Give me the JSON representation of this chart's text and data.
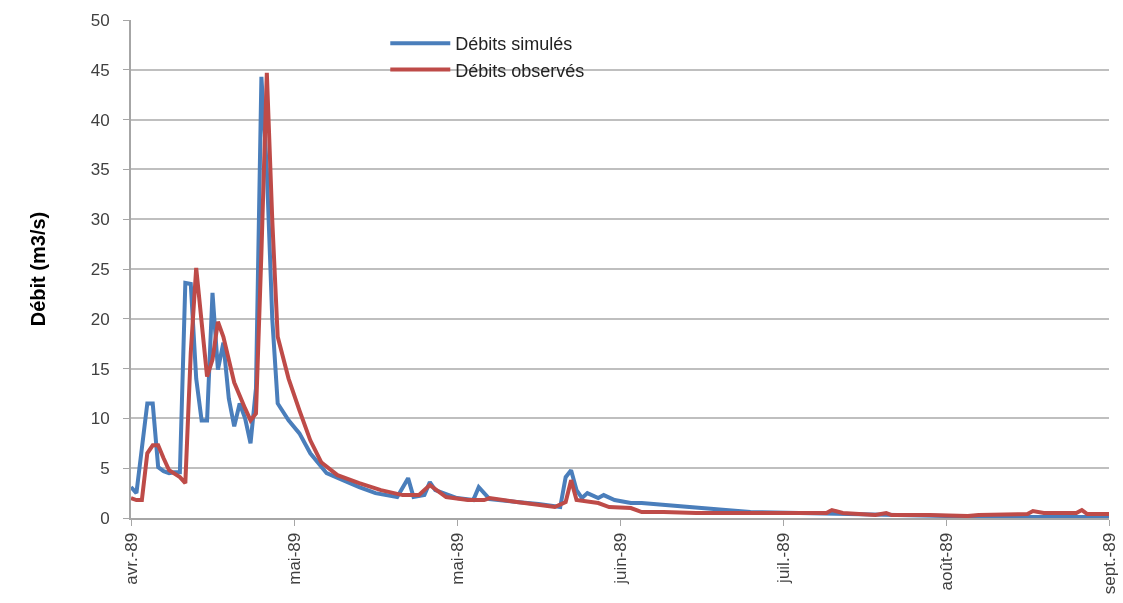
{
  "chart_data": {
    "type": "line",
    "ylabel": "Débit (m3/s)",
    "xlim": [
      "1989-04-01",
      "1989-09-28"
    ],
    "xticks": [
      {
        "value": "1989-04-01",
        "label": "avr.-89"
      },
      {
        "value": "1989-05-01",
        "label": "mai-89"
      },
      {
        "value": "1989-05-31",
        "label": "mai-89"
      },
      {
        "value": "1989-06-30",
        "label": "juin-89"
      },
      {
        "value": "1989-07-30",
        "label": "juil.-89"
      },
      {
        "value": "1989-08-29",
        "label": "août-89"
      },
      {
        "value": "1989-09-28",
        "label": "sept.-89"
      }
    ],
    "ylim": [
      0,
      50
    ],
    "yticks": [
      0,
      5,
      10,
      15,
      20,
      25,
      30,
      35,
      40,
      45,
      50
    ],
    "grid": "y",
    "legend": "top",
    "marker": "none",
    "line_style": "solid",
    "series": [
      {
        "name": "Débits simulés",
        "color": "#4a7ebb",
        "x": [
          "1989-04-01",
          "1989-04-02",
          "1989-04-03",
          "1989-04-04",
          "1989-04-05",
          "1989-04-06",
          "1989-04-07",
          "1989-04-08",
          "1989-04-09",
          "1989-04-10",
          "1989-04-11",
          "1989-04-12",
          "1989-04-13",
          "1989-04-14",
          "1989-04-15",
          "1989-04-16",
          "1989-04-17",
          "1989-04-18",
          "1989-04-19",
          "1989-04-20",
          "1989-04-21",
          "1989-04-22",
          "1989-04-23",
          "1989-04-24",
          "1989-04-25",
          "1989-04-26",
          "1989-04-27",
          "1989-04-28",
          "1989-04-30",
          "1989-05-02",
          "1989-05-04",
          "1989-05-07",
          "1989-05-10",
          "1989-05-13",
          "1989-05-16",
          "1989-05-20",
          "1989-05-22",
          "1989-05-23",
          "1989-05-25",
          "1989-05-26",
          "1989-05-27",
          "1989-05-31",
          "1989-06-03",
          "1989-06-04",
          "1989-06-06",
          "1989-06-11",
          "1989-06-15",
          "1989-06-19",
          "1989-06-20",
          "1989-06-21",
          "1989-06-22",
          "1989-06-23",
          "1989-06-24",
          "1989-06-26",
          "1989-06-27",
          "1989-06-29",
          "1989-07-02",
          "1989-07-04",
          "1989-07-15",
          "1989-07-24",
          "1989-08-02",
          "1989-08-20",
          "1989-09-07",
          "1989-09-28"
        ],
        "values": [
          3.1,
          2.5,
          7,
          11.5,
          11.5,
          5.1,
          4.7,
          4.5,
          4.6,
          4.6,
          23.6,
          23.5,
          14,
          9.8,
          9.8,
          22.6,
          14.9,
          17.6,
          12,
          9.2,
          11.5,
          10,
          7.5,
          13,
          44.3,
          35,
          20,
          11.5,
          9.8,
          8.5,
          6.5,
          4.5,
          3.8,
          3.1,
          2.5,
          2.1,
          4,
          2.1,
          2.3,
          3.6,
          2.8,
          2,
          1.8,
          3.1,
          1.9,
          1.6,
          1.4,
          1.1,
          4.1,
          4.8,
          2.8,
          2,
          2.5,
          2,
          2.3,
          1.8,
          1.5,
          1.5,
          1,
          0.6,
          0.5,
          0.3,
          0.1,
          0.1
        ]
      },
      {
        "name": "Débits observés",
        "color": "#be4b48",
        "x": [
          "1989-04-01",
          "1989-04-02",
          "1989-04-03",
          "1989-04-04",
          "1989-04-05",
          "1989-04-06",
          "1989-04-07",
          "1989-04-08",
          "1989-04-10",
          "1989-04-11",
          "1989-04-12",
          "1989-04-13",
          "1989-04-15",
          "1989-04-16",
          "1989-04-17",
          "1989-04-18",
          "1989-04-20",
          "1989-04-22",
          "1989-04-23",
          "1989-04-24",
          "1989-04-25",
          "1989-04-26",
          "1989-04-27",
          "1989-04-28",
          "1989-04-30",
          "1989-05-02",
          "1989-05-04",
          "1989-05-06",
          "1989-05-09",
          "1989-05-13",
          "1989-05-17",
          "1989-05-21",
          "1989-05-24",
          "1989-05-26",
          "1989-05-29",
          "1989-06-02",
          "1989-06-05",
          "1989-06-06",
          "1989-06-11",
          "1989-06-18",
          "1989-06-20",
          "1989-06-21",
          "1989-06-22",
          "1989-06-26",
          "1989-06-28",
          "1989-07-02",
          "1989-07-04",
          "1989-07-08",
          "1989-07-14",
          "1989-07-21",
          "1989-07-30",
          "1989-08-07",
          "1989-08-08",
          "1989-08-10",
          "1989-08-16",
          "1989-08-18",
          "1989-08-19",
          "1989-08-26",
          "1989-09-02",
          "1989-09-04",
          "1989-09-13",
          "1989-09-14",
          "1989-09-16",
          "1989-09-22",
          "1989-09-23",
          "1989-09-24",
          "1989-09-28"
        ],
        "values": [
          2,
          1.8,
          1.8,
          6.5,
          7.3,
          7.3,
          6,
          4.8,
          4.1,
          3.5,
          16.6,
          25.1,
          14.2,
          15.9,
          19.7,
          18.2,
          13.6,
          11,
          9.8,
          10.5,
          26.6,
          44.7,
          29.9,
          18.2,
          14,
          10.8,
          7.8,
          5.6,
          4.3,
          3.5,
          2.8,
          2.3,
          2.3,
          3.3,
          2.1,
          1.8,
          1.8,
          2,
          1.6,
          1.1,
          1.6,
          3.8,
          1.8,
          1.5,
          1.1,
          1,
          0.6,
          0.6,
          0.5,
          0.5,
          0.5,
          0.5,
          0.8,
          0.5,
          0.3,
          0.5,
          0.3,
          0.3,
          0.2,
          0.3,
          0.4,
          0.7,
          0.5,
          0.5,
          0.8,
          0.4,
          0.4
        ]
      }
    ]
  }
}
